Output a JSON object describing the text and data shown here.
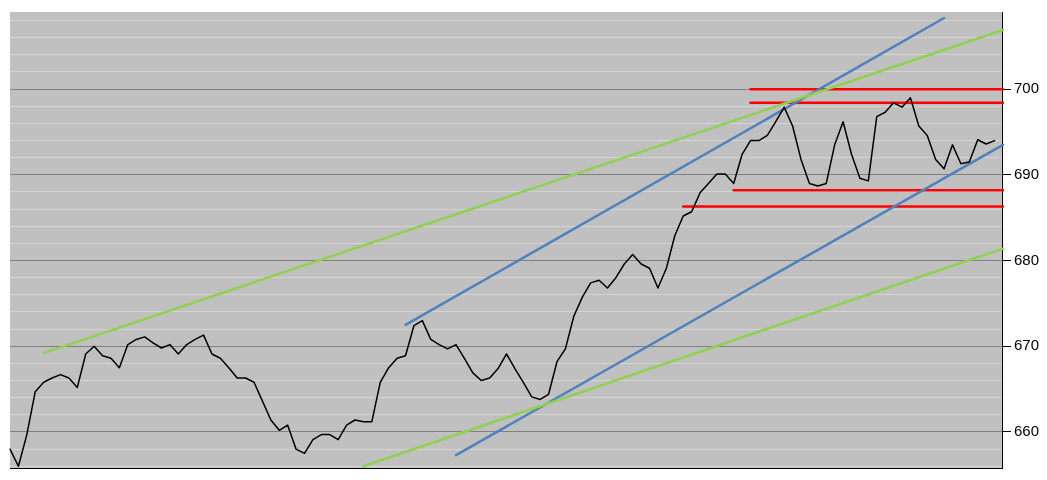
{
  "chart_data": {
    "type": "line",
    "ylim": [
      655.8,
      709
    ],
    "categories": [
      null,
      null,
      null,
      null,
      null,
      null,
      null,
      null,
      null,
      null,
      null,
      null,
      null,
      null,
      null,
      null,
      null,
      null,
      null,
      null,
      null,
      null,
      null,
      null,
      null,
      null,
      null,
      null,
      null,
      null,
      null,
      null,
      null,
      null,
      null,
      null,
      null,
      null,
      null,
      null,
      null,
      null,
      null,
      null,
      null,
      null,
      null,
      null,
      null,
      null,
      null,
      null,
      null,
      null,
      null,
      null,
      null,
      null,
      null,
      null,
      null,
      null,
      null,
      null,
      null,
      null,
      null,
      null,
      null,
      null,
      null,
      null,
      null,
      null,
      null,
      null,
      null,
      null,
      null,
      null,
      null,
      null,
      null,
      null,
      null,
      null,
      null,
      null,
      null,
      null,
      null,
      null,
      null,
      null,
      null,
      null,
      null,
      null,
      null,
      null,
      null,
      null,
      null,
      null,
      null,
      null,
      null,
      null,
      null,
      null,
      null,
      null,
      null,
      null,
      null,
      null,
      null,
      null,
      null
    ],
    "yticks": [
      {
        "value": 656,
        "label": null
      },
      {
        "value": 658,
        "label": null
      },
      660,
      {
        "value": 662,
        "label": null
      },
      {
        "value": 664,
        "label": null
      },
      {
        "value": 666,
        "label": null
      },
      {
        "value": 668,
        "label": null
      },
      670,
      {
        "value": 672,
        "label": null
      },
      {
        "value": 674,
        "label": null
      },
      {
        "value": 676,
        "label": null
      },
      {
        "value": 678,
        "label": null
      },
      680,
      {
        "value": 682,
        "label": null
      },
      {
        "value": 684,
        "label": null
      },
      {
        "value": 686,
        "label": null
      },
      {
        "value": 688,
        "label": null
      },
      690,
      {
        "value": 692,
        "label": null
      },
      {
        "value": 694,
        "label": null
      },
      {
        "value": 696,
        "label": null
      },
      {
        "value": 698,
        "label": null
      },
      700,
      {
        "value": 702,
        "label": null
      },
      {
        "value": 704,
        "label": null
      },
      {
        "value": 706,
        "label": null
      },
      {
        "value": 708,
        "label": null
      }
    ],
    "tick_labels": "y",
    "grid": "y",
    "legend": false,
    "marker": "none",
    "line_style": "solid",
    "series": [
      {
        "color": "#000000",
        "values": [
          658.0,
          656.0,
          659.7,
          664.7,
          665.8,
          666.3,
          666.7,
          666.3,
          665.2,
          669.1,
          670.0,
          668.9,
          668.6,
          667.5,
          670.2,
          670.8,
          671.1,
          670.4,
          669.8,
          670.2,
          669.1,
          670.2,
          670.8,
          671.3,
          669.1,
          668.6,
          667.5,
          666.3,
          666.3,
          665.8,
          663.6,
          661.4,
          660.2,
          660.8,
          658.0,
          657.5,
          659.1,
          659.7,
          659.7,
          659.1,
          660.8,
          661.4,
          661.2,
          661.2,
          665.8,
          667.5,
          668.6,
          668.9,
          672.4,
          673.0,
          670.8,
          670.2,
          669.7,
          670.2,
          668.6,
          666.9,
          666.0,
          666.3,
          667.4,
          669.1,
          667.4,
          665.8,
          664.1,
          663.8,
          664.4,
          668.2,
          669.7,
          673.5,
          675.7,
          677.4,
          677.7,
          676.8,
          678.0,
          679.6,
          680.7,
          679.6,
          679.1,
          676.8,
          679.1,
          682.9,
          685.2,
          685.7,
          687.9,
          689.0,
          690.1,
          690.1,
          689.0,
          692.4,
          694.0,
          694.0,
          694.6,
          696.2,
          697.9,
          695.7,
          691.8,
          689.0,
          688.7,
          689.0,
          693.5,
          696.2,
          692.4,
          689.6,
          689.3,
          696.8,
          697.3,
          698.4,
          697.9,
          699.0,
          695.7,
          694.6,
          691.8,
          690.7,
          693.5,
          691.3,
          691.5,
          694.1,
          693.6,
          694.0,
          null
        ]
      },
      {
        "color": "#92d050",
        "values": [
          null,
          null,
          null,
          null,
          669.2,
          null,
          null,
          null,
          null,
          null,
          null,
          null,
          null,
          null,
          null,
          null,
          null,
          null,
          null,
          null,
          null,
          null,
          null,
          null,
          null,
          null,
          null,
          null,
          null,
          null,
          null,
          null,
          null,
          null,
          null,
          null,
          null,
          null,
          null,
          null,
          null,
          null,
          null,
          null,
          null,
          null,
          null,
          null,
          null,
          null,
          null,
          null,
          null,
          null,
          null,
          null,
          null,
          null,
          null,
          null,
          null,
          null,
          null,
          null,
          null,
          null,
          null,
          null,
          null,
          null,
          null,
          null,
          null,
          null,
          null,
          null,
          null,
          null,
          null,
          null,
          null,
          null,
          null,
          null,
          null,
          null,
          null,
          null,
          null,
          null,
          null,
          null,
          null,
          null,
          null,
          null,
          null,
          null,
          null,
          null,
          null,
          null,
          null,
          null,
          null,
          null,
          null,
          null,
          null,
          null,
          null,
          null,
          null,
          null,
          null,
          null,
          null,
          null,
          706.9
        ]
      },
      {
        "color": "#92d050",
        "values": [
          null,
          null,
          null,
          null,
          null,
          null,
          null,
          null,
          null,
          null,
          null,
          null,
          null,
          null,
          null,
          null,
          null,
          null,
          null,
          null,
          null,
          null,
          null,
          null,
          null,
          null,
          null,
          null,
          null,
          null,
          null,
          null,
          null,
          null,
          null,
          null,
          null,
          null,
          null,
          null,
          null,
          null,
          656.0,
          null,
          null,
          null,
          null,
          null,
          null,
          null,
          null,
          null,
          null,
          null,
          null,
          null,
          null,
          null,
          null,
          null,
          null,
          null,
          null,
          null,
          null,
          null,
          null,
          null,
          null,
          null,
          null,
          null,
          null,
          null,
          null,
          null,
          null,
          null,
          null,
          null,
          null,
          null,
          null,
          null,
          null,
          null,
          null,
          null,
          null,
          null,
          null,
          null,
          null,
          null,
          null,
          null,
          null,
          null,
          null,
          null,
          null,
          null,
          null,
          null,
          null,
          null,
          null,
          null,
          null,
          null,
          null,
          null,
          null,
          null,
          null,
          null,
          null,
          null,
          681.4
        ]
      },
      {
        "color": "#4f81bd",
        "values": [
          null,
          null,
          null,
          null,
          null,
          null,
          null,
          null,
          null,
          null,
          null,
          null,
          null,
          null,
          null,
          null,
          null,
          null,
          null,
          null,
          null,
          null,
          null,
          null,
          null,
          null,
          null,
          null,
          null,
          null,
          null,
          null,
          null,
          null,
          null,
          null,
          null,
          null,
          null,
          null,
          null,
          null,
          null,
          null,
          null,
          null,
          null,
          672.5,
          null,
          null,
          null,
          null,
          null,
          null,
          null,
          null,
          null,
          null,
          null,
          null,
          null,
          null,
          null,
          null,
          null,
          null,
          null,
          null,
          null,
          null,
          null,
          null,
          null,
          null,
          null,
          null,
          null,
          null,
          null,
          null,
          null,
          null,
          null,
          null,
          null,
          null,
          null,
          null,
          null,
          null,
          null,
          null,
          null,
          null,
          null,
          null,
          null,
          null,
          null,
          null,
          null,
          null,
          null,
          null,
          null,
          null,
          null,
          null,
          null,
          null,
          null,
          708.3,
          null,
          null,
          null,
          null,
          null,
          null,
          null
        ]
      },
      {
        "color": "#4f81bd",
        "values": [
          null,
          null,
          null,
          null,
          null,
          null,
          null,
          null,
          null,
          null,
          null,
          null,
          null,
          null,
          null,
          null,
          null,
          null,
          null,
          null,
          null,
          null,
          null,
          null,
          null,
          null,
          null,
          null,
          null,
          null,
          null,
          null,
          null,
          null,
          null,
          null,
          null,
          null,
          null,
          null,
          null,
          null,
          null,
          null,
          null,
          null,
          null,
          null,
          null,
          null,
          null,
          null,
          null,
          657.3,
          null,
          null,
          null,
          null,
          null,
          null,
          null,
          null,
          null,
          null,
          null,
          null,
          null,
          null,
          null,
          null,
          null,
          null,
          null,
          null,
          null,
          null,
          null,
          null,
          null,
          null,
          null,
          null,
          null,
          null,
          null,
          null,
          null,
          null,
          null,
          null,
          null,
          null,
          null,
          null,
          null,
          null,
          null,
          null,
          null,
          null,
          null,
          null,
          null,
          null,
          null,
          null,
          null,
          null,
          null,
          null,
          null,
          null,
          null,
          null,
          null,
          null,
          null,
          null,
          693.5
        ]
      },
      {
        "color": "#ff0000",
        "values": [
          null,
          null,
          null,
          null,
          null,
          null,
          null,
          null,
          null,
          null,
          null,
          null,
          null,
          null,
          null,
          null,
          null,
          null,
          null,
          null,
          null,
          null,
          null,
          null,
          null,
          null,
          null,
          null,
          null,
          null,
          null,
          null,
          null,
          null,
          null,
          null,
          null,
          null,
          null,
          null,
          null,
          null,
          null,
          null,
          null,
          null,
          null,
          null,
          null,
          null,
          null,
          null,
          null,
          null,
          null,
          null,
          null,
          null,
          null,
          null,
          null,
          null,
          null,
          null,
          null,
          null,
          null,
          null,
          null,
          null,
          null,
          null,
          null,
          null,
          null,
          null,
          null,
          null,
          null,
          null,
          null,
          null,
          null,
          null,
          null,
          null,
          null,
          null,
          700.0,
          null,
          null,
          null,
          null,
          null,
          null,
          null,
          null,
          null,
          null,
          null,
          null,
          null,
          null,
          null,
          null,
          null,
          null,
          null,
          null,
          null,
          null,
          null,
          null,
          null,
          null,
          null,
          null,
          null,
          700.0
        ]
      },
      {
        "color": "#ff0000",
        "values": [
          null,
          null,
          null,
          null,
          null,
          null,
          null,
          null,
          null,
          null,
          null,
          null,
          null,
          null,
          null,
          null,
          null,
          null,
          null,
          null,
          null,
          null,
          null,
          null,
          null,
          null,
          null,
          null,
          null,
          null,
          null,
          null,
          null,
          null,
          null,
          null,
          null,
          null,
          null,
          null,
          null,
          null,
          null,
          null,
          null,
          null,
          null,
          null,
          null,
          null,
          null,
          null,
          null,
          null,
          null,
          null,
          null,
          null,
          null,
          null,
          null,
          null,
          null,
          null,
          null,
          null,
          null,
          null,
          null,
          null,
          null,
          null,
          null,
          null,
          null,
          null,
          null,
          null,
          null,
          null,
          null,
          null,
          null,
          null,
          null,
          null,
          null,
          null,
          698.4,
          null,
          null,
          null,
          null,
          null,
          null,
          null,
          null,
          null,
          null,
          null,
          null,
          null,
          null,
          null,
          null,
          null,
          null,
          null,
          null,
          null,
          null,
          null,
          null,
          null,
          null,
          null,
          null,
          null,
          698.4
        ]
      },
      {
        "color": "#ff0000",
        "values": [
          null,
          null,
          null,
          null,
          null,
          null,
          null,
          null,
          null,
          null,
          null,
          null,
          null,
          null,
          null,
          null,
          null,
          null,
          null,
          null,
          null,
          null,
          null,
          null,
          null,
          null,
          null,
          null,
          null,
          null,
          null,
          null,
          null,
          null,
          null,
          null,
          null,
          null,
          null,
          null,
          null,
          null,
          null,
          null,
          null,
          null,
          null,
          null,
          null,
          null,
          null,
          null,
          null,
          null,
          null,
          null,
          null,
          null,
          null,
          null,
          null,
          null,
          null,
          null,
          null,
          null,
          null,
          null,
          null,
          null,
          null,
          null,
          null,
          null,
          null,
          null,
          null,
          null,
          null,
          null,
          null,
          null,
          null,
          null,
          null,
          null,
          688.2,
          null,
          null,
          null,
          null,
          null,
          null,
          null,
          null,
          null,
          null,
          null,
          null,
          null,
          null,
          null,
          null,
          null,
          null,
          null,
          null,
          null,
          null,
          null,
          null,
          null,
          null,
          null,
          null,
          null,
          null,
          null,
          688.2
        ]
      },
      {
        "color": "#ff0000",
        "values": [
          null,
          null,
          null,
          null,
          null,
          null,
          null,
          null,
          null,
          null,
          null,
          null,
          null,
          null,
          null,
          null,
          null,
          null,
          null,
          null,
          null,
          null,
          null,
          null,
          null,
          null,
          null,
          null,
          null,
          null,
          null,
          null,
          null,
          null,
          null,
          null,
          null,
          null,
          null,
          null,
          null,
          null,
          null,
          null,
          null,
          null,
          null,
          null,
          null,
          null,
          null,
          null,
          null,
          null,
          null,
          null,
          null,
          null,
          null,
          null,
          null,
          null,
          null,
          null,
          null,
          null,
          null,
          null,
          null,
          null,
          null,
          null,
          null,
          null,
          null,
          null,
          null,
          null,
          null,
          null,
          686.3,
          null,
          null,
          null,
          null,
          null,
          null,
          null,
          null,
          null,
          null,
          null,
          null,
          null,
          null,
          null,
          null,
          null,
          null,
          null,
          null,
          null,
          null,
          null,
          null,
          null,
          null,
          null,
          null,
          null,
          null,
          null,
          null,
          null,
          null,
          null,
          null,
          null,
          686.3
        ]
      }
    ]
  }
}
